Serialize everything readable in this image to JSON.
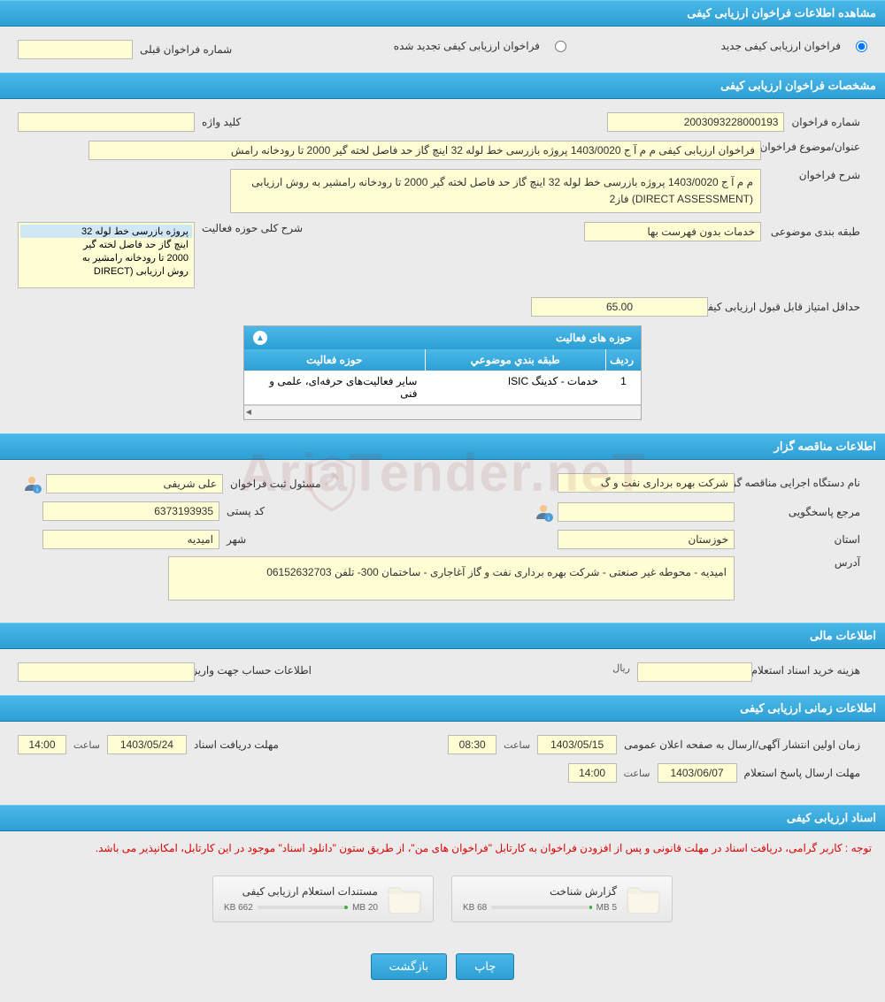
{
  "sections": {
    "view_info": "مشاهده اطلاعات فراخوان ارزیابی کیفی",
    "specs": "مشخصات فراخوان ارزیابی کیفی",
    "tenderer": "اطلاعات مناقصه گزار",
    "financial": "اطلاعات مالی",
    "timing": "اطلاعات زمانی ارزیابی کیفی",
    "docs": "اسناد ارزیابی کیفی"
  },
  "type_select": {
    "new_label": "فراخوان ارزیابی کیفی جدید",
    "renewed_label": "فراخوان ارزیابی کیفی تجدید شده",
    "prev_number_label": "شماره فراخوان قبلی",
    "prev_number": ""
  },
  "specs": {
    "number_label": "شماره فراخوان",
    "number": "2003093228000193",
    "keyword_label": "کلید واژه",
    "keyword": "",
    "title_label": "عنوان/موضوع فراخوان",
    "title": "فراخوان ارزیابی کیفی م م آ ج 1403/0020 پروژه بازرسی خط لوله 32 اینچ گاز حد فاصل لخته گیر 2000 تا رودخانه رامش",
    "desc_label": "شرح فراخوان",
    "desc": "م م آ ج 1403/0020 پروژه بازرسی خط لوله 32 اینچ گاز حد فاصل لخته گیر 2000 تا رودخانه رامشیر به روش ارزیابی (DIRECT ASSESSMENT) فاز2",
    "category_label": "طبقه بندی موضوعی",
    "category": "خدمات بدون فهرست بها",
    "activity_scope_label": "شرح کلی حوزه فعالیت",
    "activity_scope_items": [
      "پروژه بازرسی خط لوله 32",
      "اینچ گاز حد فاصل لخته گیر",
      "2000 تا رودخانه رامشیر به",
      "روش ارزیابی (DIRECT"
    ],
    "min_score_label": "حداقل امتیاز قابل قبول ارزیابی کیفی",
    "min_score": "65.00"
  },
  "activity_table": {
    "header": "حوزه های فعالیت",
    "col_idx": "ردیف",
    "col_category": "طبقه بندي موضوعي",
    "col_area": "حوزه فعالیت",
    "rows": [
      {
        "idx": "1",
        "category": "خدمات - کدینگ ISIC",
        "area": "سایر فعالیت‌های حرفه‌ای، علمی و فنی"
      }
    ]
  },
  "tenderer": {
    "org_label": "نام دستگاه اجرایی مناقصه گزار",
    "org": "شرکت بهره برداری نفت و گ",
    "registrar_label": "مسئول ثبت فراخوان",
    "registrar": "علی  شریفی",
    "contact_label": "مرجع پاسخگویی",
    "contact": "",
    "postal_label": "کد پستی",
    "postal": "6373193935",
    "province_label": "استان",
    "province": "خوزستان",
    "city_label": "شهر",
    "city": "امیدیه",
    "address_label": "آدرس",
    "address": "امیدیه - محوطه غیر صنعتی - شرکت بهره برداری نفت و گاز آغاجاری - ساختمان 300- تلفن 06152632703"
  },
  "financial": {
    "cost_label": "هزینه خرید اسناد استعلام ارزیابی کیفی",
    "cost": "",
    "currency": "ریال",
    "account_label": "اطلاعات حساب جهت واریز هزینه خرید اسناد",
    "account": ""
  },
  "timing": {
    "publish_label": "زمان اولین انتشار آگهی/ارسال به صفحه اعلان عمومی",
    "publish_date": "1403/05/15",
    "publish_time_label": "ساعت",
    "publish_time": "08:30",
    "deadline_label": "مهلت دریافت اسناد",
    "deadline_date": "1403/05/24",
    "deadline_time_label": "ساعت",
    "deadline_time": "14:00",
    "response_label": "مهلت ارسال پاسخ استعلام",
    "response_date": "1403/06/07",
    "response_time_label": "ساعت",
    "response_time": "14:00"
  },
  "docs": {
    "notice": "توجه : کاربر گرامی، دریافت اسناد در مهلت قانونی و پس از افزودن فراخوان به کارتابل \"فراخوان های من\"، از طریق ستون \"دانلود اسناد\" موجود در این کارتابل، امکانپذیر می باشد.",
    "doc1_title": "گزارش شناخت",
    "doc1_size": "68 KB",
    "doc1_max": "5 MB",
    "doc2_title": "مستندات استعلام ارزیابی کیفی",
    "doc2_size": "662 KB",
    "doc2_max": "20 MB"
  },
  "buttons": {
    "print": "چاپ",
    "back": "بازگشت"
  }
}
